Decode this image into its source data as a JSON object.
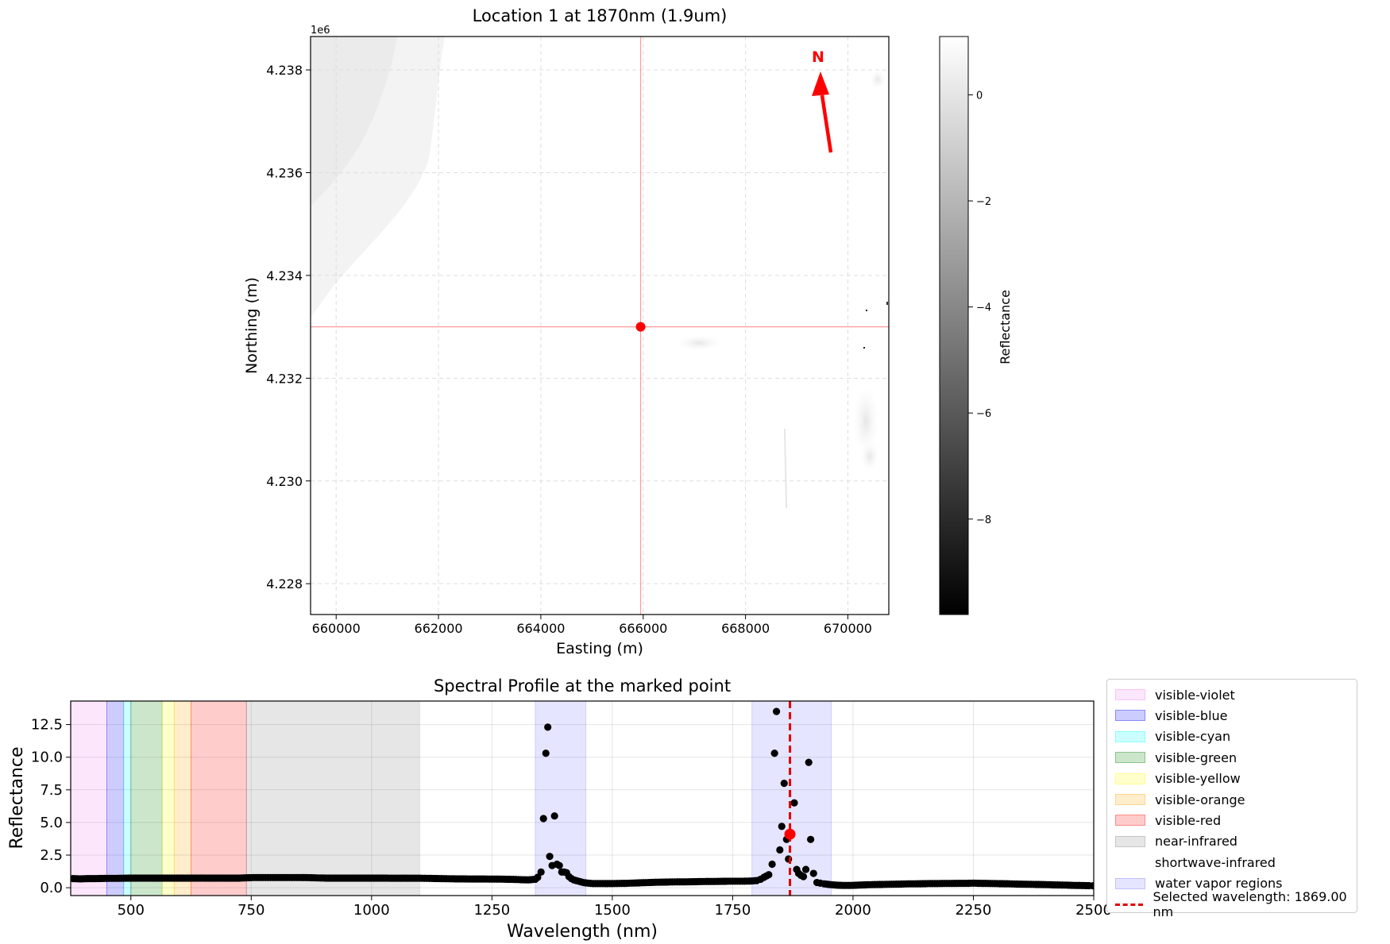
{
  "chart_data": [
    {
      "type": "heatmap",
      "title": "Location 1 at 1870nm (1.9um)",
      "xlabel": "Easting (m)",
      "ylabel": "Northing (m)",
      "y_offset_label": "1e6",
      "xlim": [
        659500,
        670800
      ],
      "ylim": [
        4227400,
        4238650
      ],
      "x_ticks": [
        660000,
        662000,
        664000,
        666000,
        668000,
        670000
      ],
      "x_tick_labels": [
        "660000",
        "662000",
        "664000",
        "666000",
        "668000",
        "670000"
      ],
      "y_ticks": [
        4228000,
        4230000,
        4232000,
        4234000,
        4236000,
        4238000
      ],
      "y_tick_labels": [
        "4.228",
        "4.230",
        "4.232",
        "4.234",
        "4.236",
        "4.238"
      ],
      "grid": true,
      "marked_point": {
        "x": 665950,
        "y": 4233000,
        "color": "#ff0000"
      },
      "north_arrow": {
        "label": "N",
        "color": "#ff0000"
      },
      "colormap": "gray",
      "colorbar": {
        "label": "Reflectance",
        "range": [
          -9.8,
          1.1
        ],
        "ticks": [
          0,
          -2,
          -4,
          -6,
          -8
        ],
        "tick_labels": [
          "0",
          "−2",
          "−4",
          "−6",
          "−8"
        ]
      }
    },
    {
      "type": "scatter",
      "title": "Spectral Profile at the marked point",
      "xlabel": "Wavelength (nm)",
      "ylabel": "Reflectance",
      "xlim": [
        375,
        2500
      ],
      "ylim": [
        -0.6,
        14.3
      ],
      "x_ticks": [
        500,
        750,
        1000,
        1250,
        1500,
        1750,
        2000,
        2250,
        2500
      ],
      "x_tick_labels": [
        "500",
        "750",
        "1000",
        "1250",
        "1500",
        "1750",
        "2000",
        "2250",
        "2500"
      ],
      "y_ticks": [
        0,
        2.5,
        5,
        7.5,
        10,
        12.5
      ],
      "y_tick_labels": [
        "0.0",
        "2.5",
        "5.0",
        "7.5",
        "10.0",
        "12.5"
      ],
      "grid": true,
      "regions": [
        {
          "name": "visible-violet",
          "x0": 375,
          "x1": 450,
          "color": "#ee82ee",
          "alpha": 0.2
        },
        {
          "name": "visible-blue",
          "x0": 450,
          "x1": 485,
          "color": "#0000ff",
          "alpha": 0.2
        },
        {
          "name": "visible-cyan",
          "x0": 485,
          "x1": 500,
          "color": "#00ffff",
          "alpha": 0.2
        },
        {
          "name": "visible-green",
          "x0": 500,
          "x1": 565,
          "color": "#008000",
          "alpha": 0.2
        },
        {
          "name": "visible-yellow",
          "x0": 565,
          "x1": 590,
          "color": "#ffff00",
          "alpha": 0.2
        },
        {
          "name": "visible-orange",
          "x0": 590,
          "x1": 625,
          "color": "#ffa500",
          "alpha": 0.2
        },
        {
          "name": "visible-red",
          "x0": 625,
          "x1": 740,
          "color": "#ff0000",
          "alpha": 0.2
        },
        {
          "name": "near-infrared",
          "x0": 740,
          "x1": 1100,
          "color": "#808080",
          "alpha": 0.2
        },
        {
          "name": "shortwave-infrared",
          "x0": 1100,
          "x1": 2500,
          "color": "#ffffff",
          "alpha": 0.2
        },
        {
          "name": "water vapor regions",
          "x0": 1340,
          "x1": 1445,
          "color": "#0000ff",
          "alpha": 0.1
        },
        {
          "name": "water vapor regions",
          "x0": 1790,
          "x1": 1955,
          "color": "#0000ff",
          "alpha": 0.1
        }
      ],
      "series": [
        {
          "color": "#000000",
          "points": [
            [
              380,
              0.7
            ],
            [
              395,
              0.68
            ],
            [
              410,
              0.7
            ],
            [
              425,
              0.7
            ],
            [
              440,
              0.71
            ],
            [
              455,
              0.72
            ],
            [
              470,
              0.72
            ],
            [
              485,
              0.73
            ],
            [
              500,
              0.74
            ],
            [
              515,
              0.74
            ],
            [
              530,
              0.74
            ],
            [
              545,
              0.74
            ],
            [
              560,
              0.74
            ],
            [
              575,
              0.74
            ],
            [
              590,
              0.74
            ],
            [
              605,
              0.74
            ],
            [
              620,
              0.74
            ],
            [
              635,
              0.74
            ],
            [
              650,
              0.74
            ],
            [
              665,
              0.74
            ],
            [
              680,
              0.74
            ],
            [
              695,
              0.74
            ],
            [
              710,
              0.74
            ],
            [
              725,
              0.74
            ],
            [
              740,
              0.76
            ],
            [
              755,
              0.78
            ],
            [
              770,
              0.78
            ],
            [
              785,
              0.78
            ],
            [
              800,
              0.78
            ],
            [
              815,
              0.78
            ],
            [
              830,
              0.78
            ],
            [
              845,
              0.78
            ],
            [
              860,
              0.78
            ],
            [
              875,
              0.77
            ],
            [
              890,
              0.75
            ],
            [
              905,
              0.74
            ],
            [
              920,
              0.74
            ],
            [
              935,
              0.74
            ],
            [
              950,
              0.74
            ],
            [
              965,
              0.74
            ],
            [
              980,
              0.74
            ],
            [
              995,
              0.74
            ],
            [
              1010,
              0.74
            ],
            [
              1025,
              0.74
            ],
            [
              1040,
              0.73
            ],
            [
              1055,
              0.73
            ],
            [
              1070,
              0.73
            ],
            [
              1085,
              0.73
            ],
            [
              1100,
              0.73
            ],
            [
              1115,
              0.72
            ],
            [
              1130,
              0.71
            ],
            [
              1145,
              0.7
            ],
            [
              1160,
              0.69
            ],
            [
              1175,
              0.68
            ],
            [
              1190,
              0.68
            ],
            [
              1205,
              0.67
            ],
            [
              1220,
              0.67
            ],
            [
              1235,
              0.67
            ],
            [
              1250,
              0.66
            ],
            [
              1265,
              0.66
            ],
            [
              1280,
              0.65
            ],
            [
              1295,
              0.64
            ],
            [
              1310,
              0.62
            ],
            [
              1325,
              0.6
            ],
            [
              1340,
              0.65
            ],
            [
              1345,
              0.8
            ],
            [
              1352,
              1.2
            ],
            [
              1357,
              5.3
            ],
            [
              1362,
              10.3
            ],
            [
              1366,
              12.3
            ],
            [
              1370,
              2.4
            ],
            [
              1375,
              1.7
            ],
            [
              1380,
              5.5
            ],
            [
              1385,
              1.8
            ],
            [
              1390,
              1.7
            ],
            [
              1395,
              1.2
            ],
            [
              1400,
              1.2
            ],
            [
              1405,
              1.15
            ],
            [
              1410,
              0.85
            ],
            [
              1415,
              0.7
            ],
            [
              1420,
              0.6
            ],
            [
              1425,
              0.55
            ],
            [
              1430,
              0.5
            ],
            [
              1435,
              0.45
            ],
            [
              1440,
              0.4
            ],
            [
              1450,
              0.35
            ],
            [
              1460,
              0.32
            ],
            [
              1470,
              0.32
            ],
            [
              1485,
              0.32
            ],
            [
              1500,
              0.32
            ],
            [
              1515,
              0.33
            ],
            [
              1530,
              0.34
            ],
            [
              1545,
              0.36
            ],
            [
              1560,
              0.38
            ],
            [
              1575,
              0.4
            ],
            [
              1590,
              0.42
            ],
            [
              1605,
              0.43
            ],
            [
              1620,
              0.44
            ],
            [
              1635,
              0.45
            ],
            [
              1650,
              0.45
            ],
            [
              1665,
              0.46
            ],
            [
              1680,
              0.47
            ],
            [
              1695,
              0.48
            ],
            [
              1710,
              0.48
            ],
            [
              1725,
              0.49
            ],
            [
              1740,
              0.5
            ],
            [
              1755,
              0.5
            ],
            [
              1770,
              0.5
            ],
            [
              1785,
              0.51
            ],
            [
              1790,
              0.52
            ],
            [
              1800,
              0.55
            ],
            [
              1808,
              0.65
            ],
            [
              1815,
              0.8
            ],
            [
              1825,
              1.0
            ],
            [
              1832,
              1.8
            ],
            [
              1837,
              10.3
            ],
            [
              1841,
              13.5
            ],
            [
              1848,
              2.9
            ],
            [
              1852,
              4.7
            ],
            [
              1857,
              8.0
            ],
            [
              1862,
              3.7
            ],
            [
              1866,
              2.2
            ],
            [
              1878,
              6.5
            ],
            [
              1883,
              1.4
            ],
            [
              1887,
              1.1
            ],
            [
              1892,
              0.95
            ],
            [
              1897,
              0.85
            ],
            [
              1902,
              1.4
            ],
            [
              1908,
              9.6
            ],
            [
              1912,
              3.7
            ],
            [
              1918,
              1.1
            ],
            [
              1925,
              0.4
            ],
            [
              1932,
              0.35
            ],
            [
              1940,
              0.3
            ],
            [
              1950,
              0.25
            ],
            [
              1965,
              0.2
            ],
            [
              1980,
              0.18
            ],
            [
              1995,
              0.18
            ],
            [
              2010,
              0.2
            ],
            [
              2025,
              0.22
            ],
            [
              2040,
              0.24
            ],
            [
              2055,
              0.25
            ],
            [
              2070,
              0.26
            ],
            [
              2085,
              0.27
            ],
            [
              2100,
              0.28
            ],
            [
              2115,
              0.3
            ],
            [
              2130,
              0.3
            ],
            [
              2145,
              0.31
            ],
            [
              2160,
              0.32
            ],
            [
              2175,
              0.32
            ],
            [
              2190,
              0.33
            ],
            [
              2205,
              0.33
            ],
            [
              2220,
              0.34
            ],
            [
              2235,
              0.34
            ],
            [
              2250,
              0.35
            ],
            [
              2265,
              0.34
            ],
            [
              2280,
              0.33
            ],
            [
              2295,
              0.32
            ],
            [
              2310,
              0.31
            ],
            [
              2325,
              0.3
            ],
            [
              2340,
              0.28
            ],
            [
              2355,
              0.27
            ],
            [
              2370,
              0.26
            ],
            [
              2385,
              0.25
            ],
            [
              2400,
              0.24
            ],
            [
              2415,
              0.22
            ],
            [
              2430,
              0.21
            ],
            [
              2445,
              0.2
            ],
            [
              2460,
              0.18
            ],
            [
              2475,
              0.17
            ],
            [
              2490,
              0.16
            ],
            [
              2498,
              0.15
            ]
          ]
        }
      ],
      "selected_point": {
        "x": 1869,
        "y": 4.1,
        "color": "#ff0000"
      },
      "selected_line": {
        "x": 1869,
        "color": "#e00000",
        "label": "Selected wavelength: 1869.00 nm"
      },
      "legend": {
        "placement": "outside-right",
        "entries": [
          {
            "label": "visible-violet",
            "color": "#ee82ee",
            "alpha": 0.2,
            "kind": "patch"
          },
          {
            "label": "visible-blue",
            "color": "#0000ff",
            "alpha": 0.2,
            "kind": "patch"
          },
          {
            "label": "visible-cyan",
            "color": "#00ffff",
            "alpha": 0.2,
            "kind": "patch"
          },
          {
            "label": "visible-green",
            "color": "#008000",
            "alpha": 0.2,
            "kind": "patch"
          },
          {
            "label": "visible-yellow",
            "color": "#ffff00",
            "alpha": 0.2,
            "kind": "patch"
          },
          {
            "label": "visible-orange",
            "color": "#ffa500",
            "alpha": 0.2,
            "kind": "patch"
          },
          {
            "label": "visible-red",
            "color": "#ff0000",
            "alpha": 0.2,
            "kind": "patch"
          },
          {
            "label": "near-infrared",
            "color": "#808080",
            "alpha": 0.2,
            "kind": "patch"
          },
          {
            "label": "shortwave-infrared",
            "color": "#ffffff",
            "alpha": 0.2,
            "kind": "patch"
          },
          {
            "label": "water vapor regions",
            "color": "#0000ff",
            "alpha": 0.1,
            "kind": "patch"
          },
          {
            "label": "Selected wavelength: 1869.00 nm",
            "color": "#e00000",
            "kind": "dashed-line"
          }
        ]
      }
    }
  ]
}
